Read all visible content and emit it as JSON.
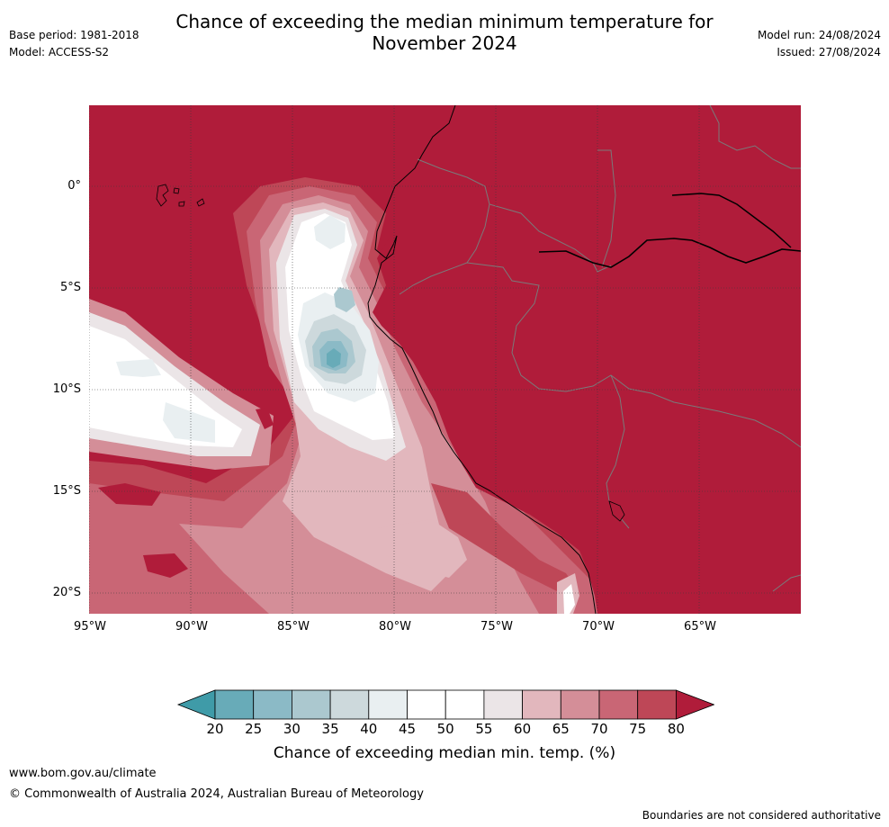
{
  "title_line1": "Chance of exceeding the median minimum temperature for",
  "title_line2": "November 2024",
  "base_period": "Base period: 1981-2018",
  "model": "Model: ACCESS-S2",
  "model_run": "Model run: 24/08/2024",
  "issued": "Issued: 27/08/2024",
  "lat_labels": [
    "0°",
    "5°S",
    "10°S",
    "15°S",
    "20°S"
  ],
  "lon_labels": [
    "95°W",
    "90°W",
    "85°W",
    "80°W",
    "75°W",
    "70°W",
    "65°W"
  ],
  "legend": {
    "title": "Chance of exceeding median min. temp. (%)",
    "ticks": [
      "20",
      "25",
      "30",
      "35",
      "40",
      "45",
      "50",
      "55",
      "60",
      "65",
      "70",
      "75",
      "80"
    ],
    "colors": [
      "#3f9ba8",
      "#68abb8",
      "#8bbac6",
      "#abc8cf",
      "#cdd9dc",
      "#e9eff1",
      "#ffffff",
      "#ffffff",
      "#ebe5e7",
      "#e2b7bd",
      "#d48e98",
      "#c96675",
      "#be4757",
      "#b01c3a"
    ]
  },
  "colors": {
    "high": "#b01c3a",
    "c75": "#be4757",
    "c70": "#c96675",
    "c65": "#d48e98",
    "c60": "#e2b7bd",
    "c55": "#ebe5e7",
    "c50": "#ffffff",
    "c40": "#e9eff1",
    "c35": "#cdd9dc",
    "c30": "#abc8cf",
    "c25": "#8bbac6",
    "c20": "#68abb8"
  },
  "footer": {
    "url": "www.bom.gov.au/climate",
    "copyright": "© Commonwealth of Australia 2024, Australian Bureau of Meteorology",
    "note": "Boundaries are not considered authoritative"
  }
}
